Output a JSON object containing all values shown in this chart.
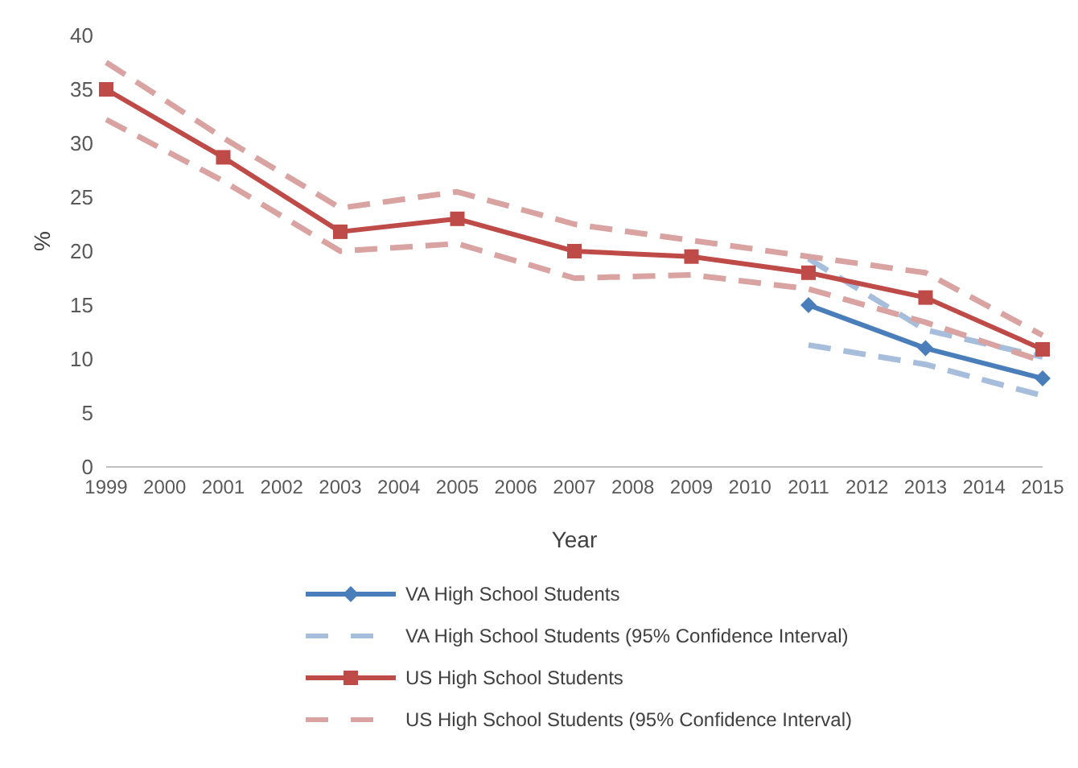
{
  "chart_data": {
    "type": "line",
    "xlabel": "Year",
    "ylabel": "%",
    "categories": [
      "1999",
      "2000",
      "2001",
      "2002",
      "2003",
      "2004",
      "2005",
      "2006",
      "2007",
      "2008",
      "2009",
      "2010",
      "2011",
      "2012",
      "2013",
      "2014",
      "2015"
    ],
    "ylim": [
      0,
      40
    ],
    "yticks": [
      0,
      5,
      10,
      15,
      20,
      25,
      30,
      35,
      40
    ],
    "grid": false,
    "legend": "bottom",
    "series": [
      {
        "name": "VA High School Students",
        "color": "#4a7ebb",
        "marker": "diamond",
        "line_style": "solid",
        "values": [
          null,
          null,
          null,
          null,
          null,
          null,
          null,
          null,
          null,
          null,
          null,
          null,
          15,
          null,
          11,
          null,
          8.2
        ]
      },
      {
        "name": "VA High School Students (95% Confidence Interval)",
        "color": "#a6bddb",
        "marker": "none",
        "line_style": "dashed",
        "values": [
          null,
          null,
          null,
          null,
          null,
          null,
          null,
          null,
          null,
          null,
          null,
          null,
          19.3,
          null,
          12.7,
          null,
          10.2
        ]
      },
      {
        "name": null,
        "color": "#a6bddb",
        "marker": "none",
        "line_style": "dashed",
        "values": [
          null,
          null,
          null,
          null,
          null,
          null,
          null,
          null,
          null,
          null,
          null,
          null,
          11.3,
          null,
          9.5,
          null,
          6.6
        ]
      },
      {
        "name": "US High School Students",
        "color": "#be4b48",
        "marker": "square",
        "line_style": "solid",
        "values": [
          35,
          null,
          28.7,
          null,
          21.8,
          null,
          23,
          null,
          20,
          null,
          19.5,
          null,
          18,
          null,
          15.7,
          null,
          10.9
        ]
      },
      {
        "name": "US High School Students (95% Confidence Interval)",
        "color": "#d9a3a2",
        "marker": "none",
        "line_style": "dashed",
        "values": [
          37.5,
          null,
          30.5,
          null,
          24,
          null,
          25.5,
          null,
          22.5,
          null,
          21,
          null,
          19.5,
          null,
          18,
          null,
          12.2
        ]
      },
      {
        "name": null,
        "color": "#d9a3a2",
        "marker": "none",
        "line_style": "dashed",
        "values": [
          32.2,
          null,
          26.5,
          null,
          20,
          null,
          20.7,
          null,
          17.5,
          null,
          17.8,
          null,
          16.5,
          null,
          13.4,
          null,
          9.8
        ]
      }
    ]
  }
}
